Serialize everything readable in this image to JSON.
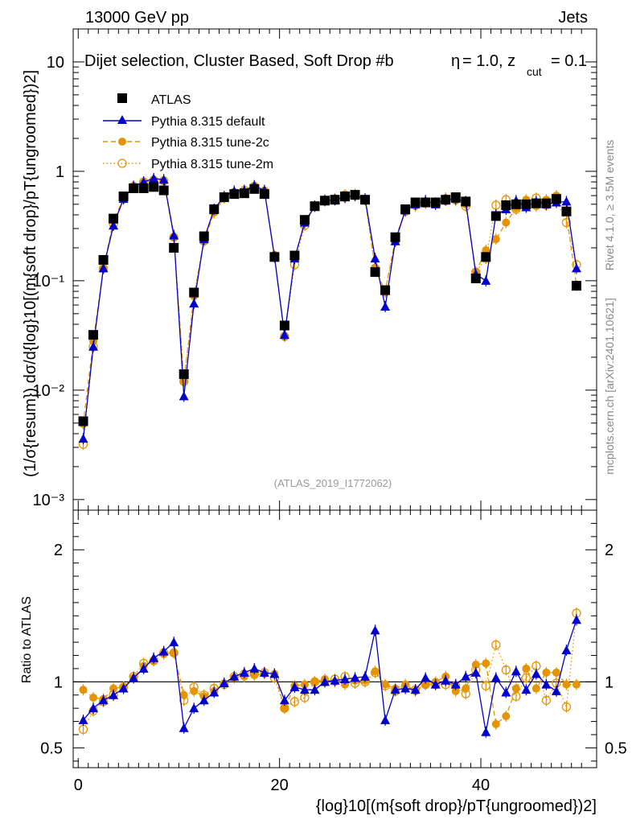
{
  "header": {
    "left": "13000 GeV pp",
    "right": "Jets"
  },
  "chart_data": {
    "type": "scatter",
    "title": "Dijet selection, Cluster Based, Soft Drop #b",
    "title_beta": "= 1.0, z",
    "title_beta_symbol": "η",
    "title_zcut_sub": "cut",
    "title_zcut_val": "= 0.1",
    "watermark": "(ATLAS_2019_I1772062)",
    "side_label_top": "Rivet 4.1.0, ≥ 3.5M events",
    "side_label_bottom": "mcplots.cern.ch [arXiv:2401.10621]",
    "ylabel_main": "(1/σ{resum}) dσ/d{log}10[(m{soft drop}/pT{ungroomed})2]",
    "ylabel_ratio": "Ratio to ATLAS",
    "xlabel": "{log}10[(m{soft drop}/pT{ungroomed})2]",
    "xlim": [
      -0.5,
      51.5
    ],
    "ylim_main": [
      0.0008,
      20
    ],
    "ylim_ratio": [
      0.35,
      2.3
    ],
    "x_ticks": [
      0,
      20,
      40
    ],
    "x_tick_labels": [
      "0",
      "20",
      "40"
    ],
    "y_ticks_main": [
      0.001,
      0.01,
      0.1,
      1,
      10
    ],
    "y_tick_labels_main": [
      "10⁻³",
      "10⁻²",
      "10⁻¹",
      "1",
      "10"
    ],
    "y_ticks_ratio": [
      0.5,
      1,
      2
    ],
    "y_tick_labels_ratio": [
      "0.5",
      "1",
      "2"
    ],
    "legend": [
      {
        "name": "ATLAS",
        "style": "square",
        "color": "#000000"
      },
      {
        "name": "Pythia 8.315 default",
        "style": "triangle-line",
        "color": "#0000cc"
      },
      {
        "name": "Pythia 8.315 tune-2c",
        "style": "dot-dashed",
        "color": "#e59400"
      },
      {
        "name": "Pythia 8.315 tune-2m",
        "style": "circle-dotted",
        "color": "#e59400"
      }
    ],
    "x": [
      0.5,
      1.5,
      2.5,
      3.5,
      4.5,
      5.5,
      6.5,
      7.5,
      8.5,
      9.5,
      10.5,
      11.5,
      12.5,
      13.5,
      14.5,
      15.5,
      16.5,
      17.5,
      18.5,
      19.5,
      20.5,
      21.5,
      22.5,
      23.5,
      24.5,
      25.5,
      26.5,
      27.5,
      28.5,
      29.5,
      30.5,
      31.5,
      32.5,
      33.5,
      34.5,
      35.5,
      36.5,
      37.5,
      38.5,
      39.5,
      40.5,
      41.5,
      42.5,
      43.5,
      44.5,
      45.5,
      46.5,
      47.5,
      48.5,
      49.5
    ],
    "series": [
      {
        "name": "ATLAS",
        "values": [
          0.0052,
          0.032,
          0.155,
          0.37,
          0.59,
          0.7,
          0.7,
          0.72,
          0.67,
          0.2,
          0.014,
          0.078,
          0.255,
          0.45,
          0.58,
          0.62,
          0.63,
          0.69,
          0.62,
          0.165,
          0.039,
          0.17,
          0.36,
          0.48,
          0.54,
          0.55,
          0.59,
          0.61,
          0.55,
          0.12,
          0.082,
          0.25,
          0.45,
          0.52,
          0.52,
          0.52,
          0.55,
          0.58,
          0.53,
          0.105,
          0.165,
          0.39,
          0.49,
          0.5,
          0.5,
          0.51,
          0.51,
          0.56,
          0.43,
          0.09
        ]
      },
      {
        "name": "Pythia 8.315 default",
        "values": [
          0.0036,
          0.025,
          0.13,
          0.32,
          0.56,
          0.73,
          0.8,
          0.86,
          0.84,
          0.26,
          0.0088,
          0.062,
          0.24,
          0.45,
          0.59,
          0.66,
          0.67,
          0.74,
          0.67,
          0.165,
          0.032,
          0.16,
          0.34,
          0.48,
          0.54,
          0.55,
          0.58,
          0.6,
          0.56,
          0.16,
          0.058,
          0.23,
          0.44,
          0.5,
          0.54,
          0.5,
          0.55,
          0.56,
          0.53,
          0.115,
          0.1,
          0.4,
          0.45,
          0.54,
          0.47,
          0.53,
          0.5,
          0.52,
          0.53,
          0.13
        ]
      },
      {
        "name": "Pythia 8.315 tune-2c",
        "values": [
          0.0049,
          0.028,
          0.13,
          0.35,
          0.57,
          0.73,
          0.79,
          0.83,
          0.81,
          0.25,
          0.012,
          0.072,
          0.23,
          0.42,
          0.57,
          0.64,
          0.65,
          0.73,
          0.66,
          0.17,
          0.031,
          0.16,
          0.35,
          0.48,
          0.55,
          0.55,
          0.57,
          0.62,
          0.56,
          0.13,
          0.08,
          0.24,
          0.44,
          0.48,
          0.51,
          0.52,
          0.57,
          0.54,
          0.5,
          0.12,
          0.19,
          0.24,
          0.34,
          0.46,
          0.55,
          0.48,
          0.55,
          0.6,
          0.42,
          0.09
        ]
      },
      {
        "name": "Pythia 8.315 tune-2m",
        "values": [
          0.0032,
          0.025,
          0.13,
          0.33,
          0.56,
          0.73,
          0.8,
          0.83,
          0.82,
          0.25,
          0.012,
          0.075,
          0.23,
          0.43,
          0.57,
          0.64,
          0.67,
          0.73,
          0.66,
          0.17,
          0.031,
          0.14,
          0.32,
          0.48,
          0.54,
          0.56,
          0.61,
          0.6,
          0.55,
          0.13,
          0.079,
          0.23,
          0.43,
          0.49,
          0.51,
          0.51,
          0.54,
          0.56,
          0.48,
          0.12,
          0.16,
          0.49,
          0.55,
          0.45,
          0.52,
          0.57,
          0.49,
          0.55,
          0.34,
          0.14
        ]
      }
    ],
    "ratio_series": [
      {
        "name": "Pythia 8.315 default",
        "values": [
          0.71,
          0.8,
          0.86,
          0.9,
          0.95,
          1.03,
          1.1,
          1.18,
          1.23,
          1.3,
          0.65,
          0.8,
          0.86,
          0.92,
          0.99,
          1.04,
          1.07,
          1.1,
          1.07,
          1.06,
          0.86,
          0.96,
          0.94,
          0.94,
          1.0,
          1.01,
          1.02,
          1.03,
          1.04,
          1.39,
          0.71,
          0.94,
          0.95,
          0.94,
          1.03,
          0.98,
          1.01,
          0.98,
          1.04,
          1.07,
          0.62,
          1.03,
          0.92,
          1.08,
          0.94,
          1.06,
          0.98,
          0.93,
          1.24,
          1.47
        ]
      },
      {
        "name": "Pythia 8.315 tune-2c",
        "values": [
          0.94,
          0.88,
          0.87,
          0.95,
          0.96,
          1.03,
          1.12,
          1.16,
          1.21,
          1.22,
          0.9,
          0.93,
          0.89,
          0.93,
          0.99,
          1.03,
          1.04,
          1.05,
          1.06,
          1.06,
          0.8,
          0.97,
          0.98,
          1.0,
          1.02,
          1.0,
          0.98,
          1.01,
          1.01,
          1.08,
          0.98,
          0.95,
          0.98,
          0.93,
          0.98,
          1.0,
          1.04,
          0.93,
          0.95,
          1.13,
          1.14,
          0.68,
          0.74,
          0.95,
          1.1,
          0.95,
          1.07,
          1.07,
          0.98,
          0.98
        ]
      },
      {
        "name": "Pythia 8.315 tune-2m",
        "values": [
          0.64,
          0.78,
          0.85,
          0.9,
          0.96,
          1.04,
          1.14,
          1.16,
          1.22,
          1.22,
          0.86,
          0.96,
          0.9,
          0.95,
          0.98,
          1.04,
          1.06,
          1.06,
          1.07,
          1.03,
          0.8,
          0.85,
          0.88,
          1.0,
          1.0,
          1.02,
          1.04,
          0.99,
          1.0,
          1.07,
          0.97,
          0.93,
          0.96,
          0.94,
          0.98,
          0.98,
          0.98,
          0.97,
          0.91,
          1.09,
          0.97,
          1.28,
          1.09,
          0.89,
          1.03,
          1.12,
          0.86,
          0.99,
          0.81,
          1.52
        ]
      }
    ]
  },
  "colors": {
    "atlas": "#000000",
    "default": "#0000cc",
    "tune": "#e59400",
    "watermark": "#999999",
    "side": "#888888"
  }
}
